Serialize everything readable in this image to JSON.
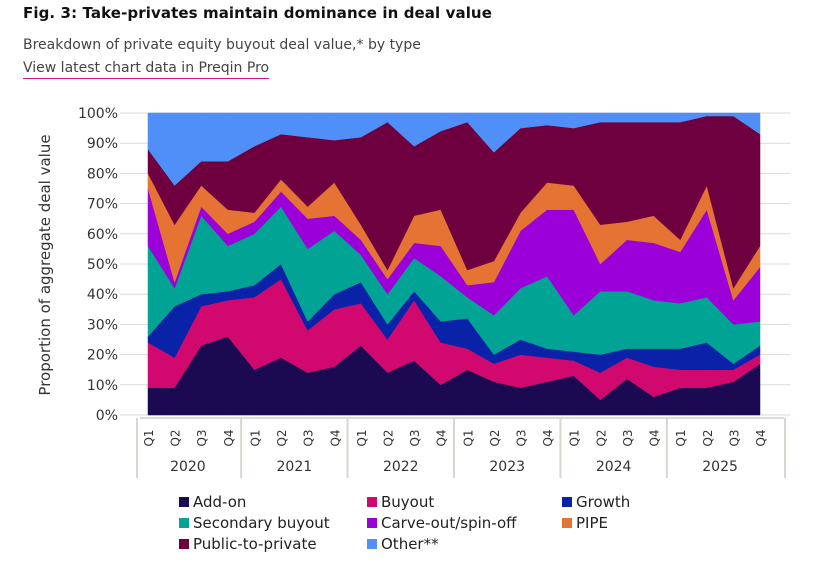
{
  "header": {
    "title": "Fig. 3: Take-privates maintain dominance in deal value",
    "subtitle": "Breakdown of private equity buyout deal value,* by type",
    "link_text": "View latest chart data in Preqin Pro"
  },
  "chart_data": {
    "type": "area",
    "stacked": true,
    "normalized": true,
    "ylabel": "Proportion of aggregate deal value",
    "ylim": [
      0,
      100
    ],
    "yticks": [
      "0%",
      "10%",
      "20%",
      "30%",
      "40%",
      "50%",
      "60%",
      "70%",
      "80%",
      "90%",
      "100%"
    ],
    "grid": true,
    "legend_position": "bottom",
    "x": [
      "Q1",
      "Q2",
      "Q3",
      "Q4",
      "Q1",
      "Q2",
      "Q3",
      "Q4",
      "Q1",
      "Q2",
      "Q3",
      "Q4",
      "Q1",
      "Q2",
      "Q3",
      "Q4",
      "Q1",
      "Q2",
      "Q3",
      "Q4",
      "Q1",
      "Q2",
      "Q3",
      "Q4"
    ],
    "years": [
      "2020",
      "2021",
      "2022",
      "2023",
      "2024",
      "2025"
    ],
    "series": [
      {
        "name": "Add-on",
        "color": "#1b0a52",
        "values": [
          9,
          9,
          23,
          26,
          15,
          19,
          14,
          16,
          23,
          14,
          18,
          10,
          15,
          11,
          9,
          11,
          13,
          5,
          12,
          6,
          9,
          9,
          11,
          17
        ]
      },
      {
        "name": "Buyout",
        "color": "#d1096e",
        "values": [
          15,
          10,
          13,
          12,
          24,
          26,
          14,
          19,
          14,
          11,
          20,
          14,
          7,
          6,
          11,
          8,
          5,
          9,
          7,
          10,
          6,
          6,
          4,
          3
        ]
      },
      {
        "name": "Growth",
        "color": "#0a22a8",
        "values": [
          2,
          17,
          4,
          3,
          4,
          5,
          3,
          5,
          7,
          5,
          3,
          7,
          10,
          3,
          5,
          3,
          3,
          6,
          3,
          6,
          7,
          9,
          2,
          3
        ]
      },
      {
        "name": "Secondary buyout",
        "color": "#00a394",
        "values": [
          30,
          6,
          26,
          15,
          17,
          19,
          24,
          21,
          9,
          10,
          11,
          15,
          7,
          13,
          17,
          24,
          12,
          21,
          19,
          16,
          15,
          15,
          13,
          8
        ]
      },
      {
        "name": "Carve-out/spin-off",
        "color": "#9b00d9",
        "values": [
          19,
          2,
          3,
          4,
          4,
          5,
          10,
          5,
          5,
          5,
          5,
          10,
          4,
          11,
          19,
          22,
          35,
          9,
          17,
          19,
          17,
          29,
          8,
          18
        ]
      },
      {
        "name": "PIPE",
        "color": "#e57334",
        "values": [
          5,
          19,
          7,
          8,
          3,
          4,
          4,
          11,
          5,
          3,
          9,
          12,
          5,
          7,
          6,
          9,
          8,
          13,
          6,
          9,
          4,
          8,
          4,
          7
        ]
      },
      {
        "name": "Public-to-private",
        "color": "#6e0040",
        "values": [
          8,
          13,
          8,
          16,
          22,
          15,
          23,
          14,
          29,
          49,
          23,
          26,
          49,
          36,
          28,
          19,
          19,
          34,
          33,
          31,
          39,
          23,
          57,
          37
        ]
      },
      {
        "name": "Other**",
        "color": "#4f8ff7",
        "values": [
          12,
          24,
          16,
          16,
          11,
          7,
          8,
          9,
          8,
          3,
          11,
          6,
          3,
          13,
          5,
          4,
          5,
          3,
          3,
          3,
          3,
          1,
          1,
          7
        ]
      }
    ]
  }
}
